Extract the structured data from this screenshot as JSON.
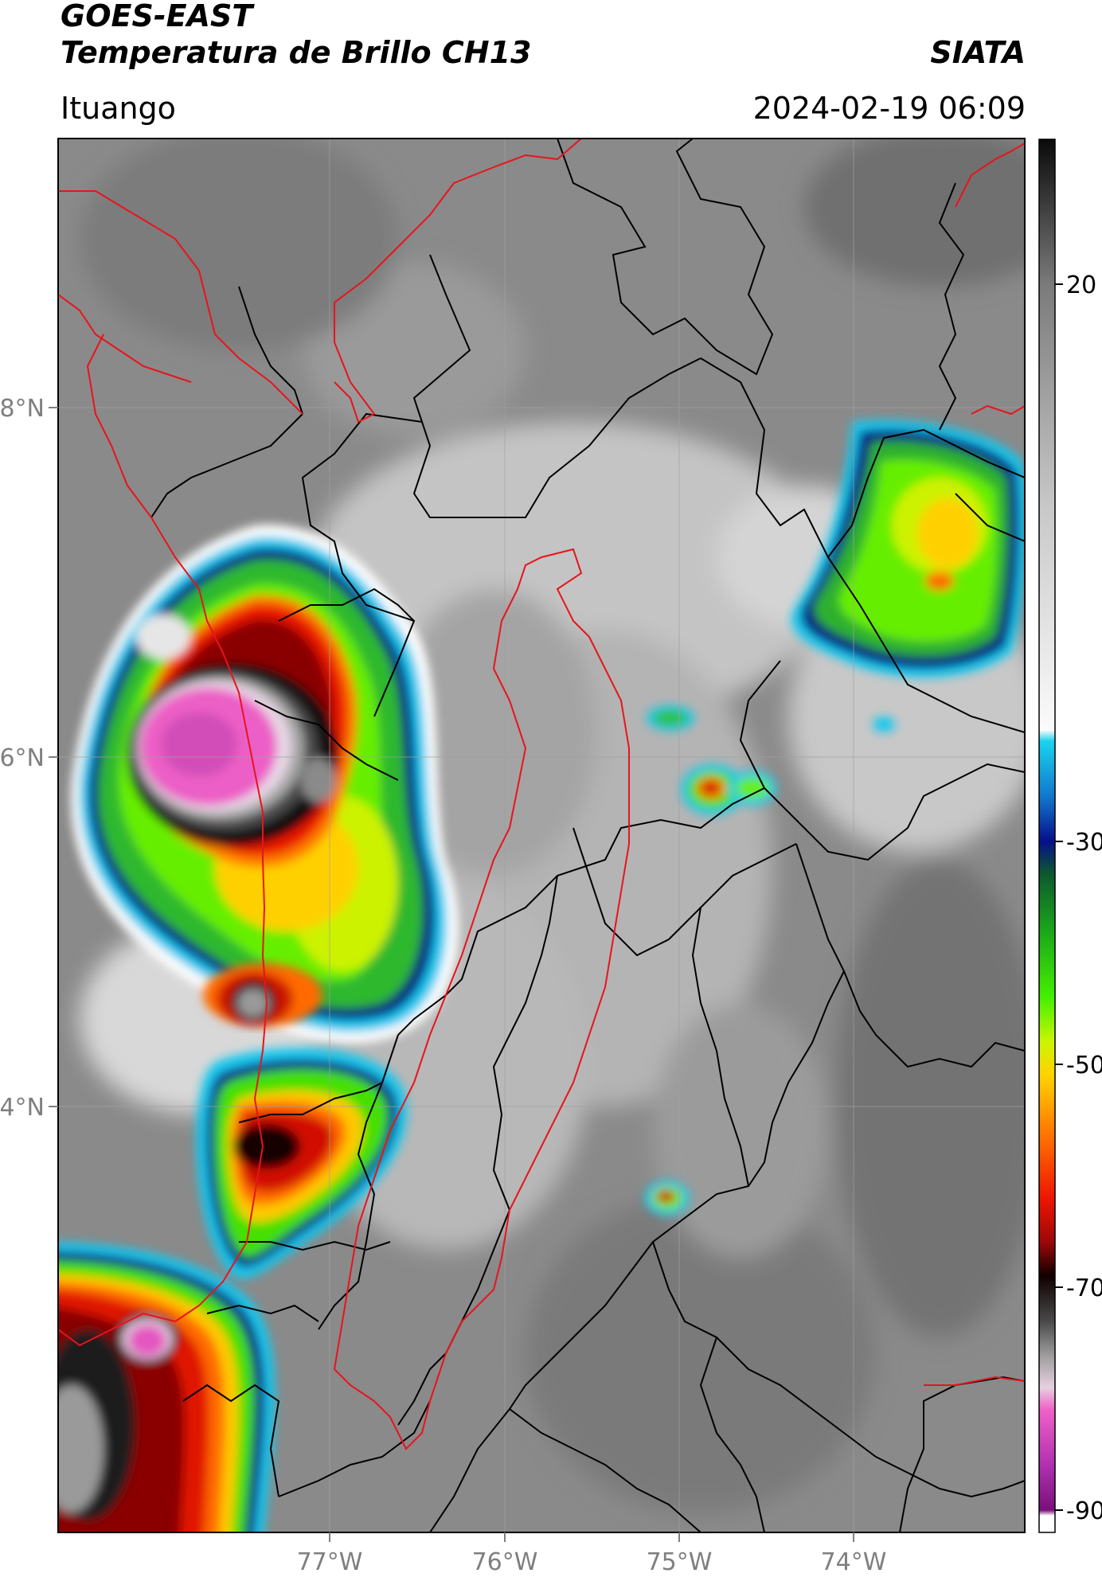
{
  "header": {
    "title_line1": "GOES-EAST",
    "title_line2": "Temperatura de Brillo CH13",
    "agency": "SIATA",
    "region": "Ituango",
    "datetime": "2024-02-19 06:09"
  },
  "map": {
    "lat_ticks": [
      {
        "value": 8,
        "label": "8°N"
      },
      {
        "value": 6,
        "label": "6°N"
      },
      {
        "value": 4,
        "label": "4°N"
      }
    ],
    "lon_ticks": [
      {
        "value": -77,
        "label": "77°W"
      },
      {
        "value": -76,
        "label": "76°W"
      },
      {
        "value": -75,
        "label": "75°W"
      },
      {
        "value": -74,
        "label": "74°W"
      }
    ],
    "boundary_colors": {
      "country": "#e8141c",
      "department": "#000000"
    }
  },
  "colorbar": {
    "ticks": [
      {
        "value": 20,
        "label": "20"
      },
      {
        "value": -30,
        "label": "-30"
      },
      {
        "value": -50,
        "label": "-50"
      },
      {
        "value": -70,
        "label": "-70"
      },
      {
        "value": -90,
        "label": "-90"
      }
    ],
    "range": [
      -92,
      33
    ],
    "stops": [
      {
        "value": 33,
        "color": "#0a0a0a"
      },
      {
        "value": 20,
        "color": "#7a7a7a"
      },
      {
        "value": 0,
        "color": "#c8c8c8"
      },
      {
        "value": -20,
        "color": "#fbfbfb"
      },
      {
        "value": -21,
        "color": "#19d3f0"
      },
      {
        "value": -26,
        "color": "#1177cc"
      },
      {
        "value": -30,
        "color": "#06108a"
      },
      {
        "value": -33,
        "color": "#0d5a2d"
      },
      {
        "value": -38,
        "color": "#1aa61a"
      },
      {
        "value": -44,
        "color": "#44f000"
      },
      {
        "value": -48,
        "color": "#ccf500"
      },
      {
        "value": -51,
        "color": "#ffd200"
      },
      {
        "value": -56,
        "color": "#ff7a00"
      },
      {
        "value": -62,
        "color": "#ee1500"
      },
      {
        "value": -66,
        "color": "#9a0808"
      },
      {
        "value": -69,
        "color": "#100000"
      },
      {
        "value": -73,
        "color": "#484848"
      },
      {
        "value": -76,
        "color": "#9a9a9a"
      },
      {
        "value": -79,
        "color": "#e6d0e0"
      },
      {
        "value": -81,
        "color": "#f060c8"
      },
      {
        "value": -86,
        "color": "#b030b0"
      },
      {
        "value": -90,
        "color": "#7a107a"
      },
      {
        "value": -90.5,
        "color": "#ffffff"
      },
      {
        "value": -92,
        "color": "#ffffff"
      }
    ]
  }
}
